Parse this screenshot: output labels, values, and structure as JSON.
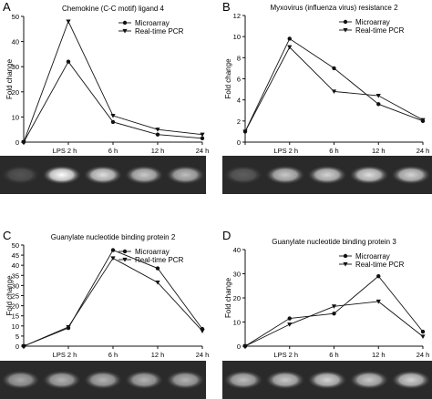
{
  "legend_labels": {
    "microarray": "Microarray",
    "pcr": "Real-time PCR"
  },
  "chart_data": [
    {
      "type": "line",
      "panel_letter": "A",
      "title": "Chemokine (C-C motif) ligand 4",
      "ylabel": "Fold change",
      "ylim": [
        0,
        50
      ],
      "yticks": [
        0,
        10,
        20,
        30,
        40,
        50
      ],
      "x_tick_labels": [
        "",
        "LPS 2 h",
        "6 h",
        "12 h",
        "24 h"
      ],
      "series": [
        {
          "name": "Microarray",
          "marker": "circle",
          "values": [
            0,
            32,
            8,
            3,
            1.5
          ]
        },
        {
          "name": "Real-time PCR",
          "marker": "triangle",
          "values": [
            0,
            48,
            10.5,
            5,
            3
          ]
        }
      ]
    },
    {
      "type": "line",
      "panel_letter": "B",
      "title": "Myxovirus (influenza virus) resistance 2",
      "ylabel": "Fold change",
      "ylim": [
        0,
        12
      ],
      "yticks": [
        0,
        2,
        4,
        6,
        8,
        10,
        12
      ],
      "x_tick_labels": [
        "",
        "LPS 2 h",
        "6 h",
        "12 h",
        "24 h"
      ],
      "series": [
        {
          "name": "Microarray",
          "marker": "circle",
          "values": [
            1,
            9.8,
            7,
            3.6,
            2
          ]
        },
        {
          "name": "Real-time PCR",
          "marker": "triangle",
          "values": [
            1,
            9,
            4.8,
            4.4,
            2.1
          ]
        }
      ]
    },
    {
      "type": "line",
      "panel_letter": "C",
      "title": "Guanylate nucleotide binding protein 2",
      "ylabel": "Fold change",
      "ylim": [
        0,
        50
      ],
      "yticks": [
        0,
        5,
        10,
        15,
        20,
        25,
        30,
        35,
        40,
        45,
        50
      ],
      "x_tick_labels": [
        "",
        "LPS 2 h",
        "6 h",
        "12 h",
        "24 h"
      ],
      "series": [
        {
          "name": "Microarray",
          "marker": "circle",
          "values": [
            0,
            9,
            47.5,
            38.5,
            8.5
          ]
        },
        {
          "name": "Real-time PCR",
          "marker": "triangle",
          "values": [
            0,
            9.5,
            43.5,
            31.5,
            7.5
          ]
        }
      ]
    },
    {
      "type": "line",
      "panel_letter": "D",
      "title": "Guanylate nucleotide binding protein 3",
      "ylabel": "Fold change",
      "ylim": [
        0,
        40
      ],
      "yticks": [
        0,
        10,
        20,
        30,
        40
      ],
      "x_tick_labels": [
        "",
        "LPS 2 h",
        "6 h",
        "12 h",
        "24 h"
      ],
      "series": [
        {
          "name": "Microarray",
          "marker": "circle",
          "values": [
            0,
            11.5,
            13.5,
            29,
            6
          ]
        },
        {
          "name": "Real-time PCR",
          "marker": "triangle",
          "values": [
            0,
            9,
            16.5,
            18.5,
            4
          ]
        }
      ]
    }
  ],
  "gel_strips": [
    {
      "panel": "A",
      "band_intensity": [
        0.2,
        1.0,
        0.85,
        0.75,
        0.7
      ]
    },
    {
      "panel": "B",
      "band_intensity": [
        0.25,
        0.75,
        0.8,
        0.85,
        0.8
      ]
    },
    {
      "panel": "C",
      "band_intensity": [
        0.6,
        0.65,
        0.65,
        0.65,
        0.65
      ]
    },
    {
      "panel": "D",
      "band_intensity": [
        0.7,
        0.75,
        0.8,
        0.75,
        0.8
      ]
    }
  ]
}
